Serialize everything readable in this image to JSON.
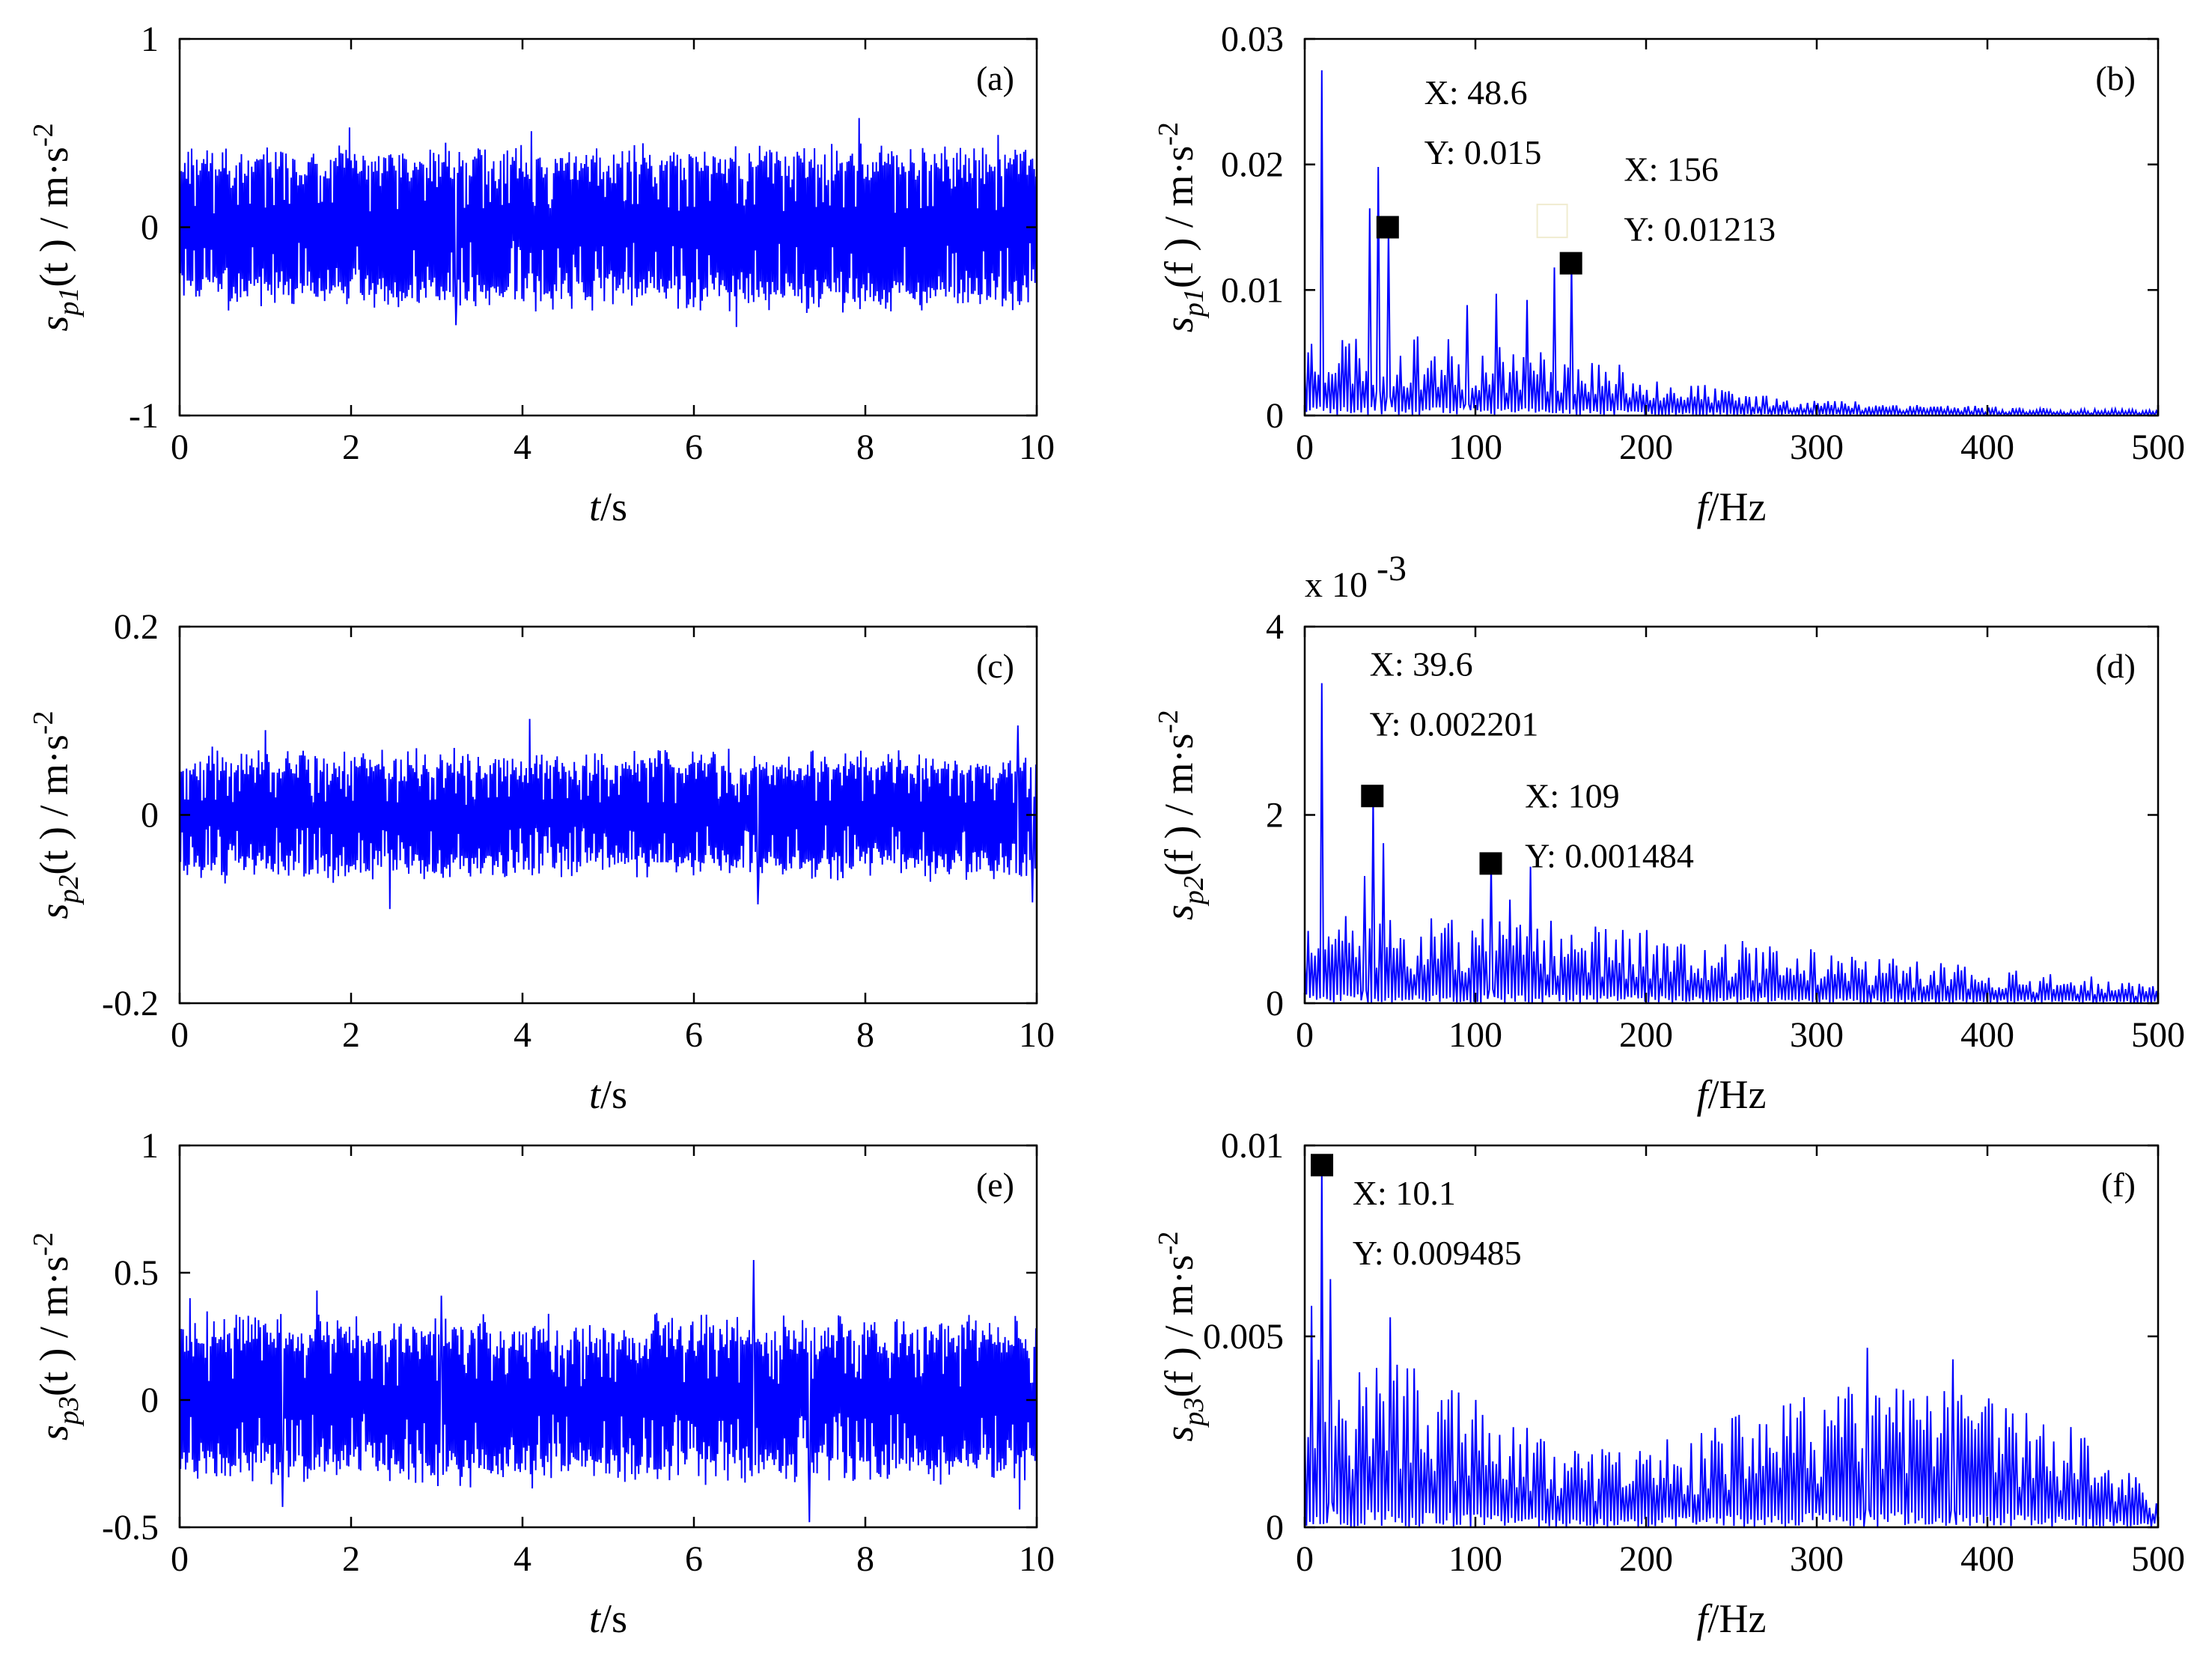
{
  "chart_data": [
    {
      "type": "line",
      "id": "a",
      "panel_label": "(a)",
      "color": "#0000ff",
      "xlabel_main": "t",
      "xlabel_unit": "/s",
      "ylabel_var": "s",
      "ylabel_sub": "p1",
      "ylabel_arg": "(t )",
      "ylabel_unit": " / m·s",
      "ylabel_sup": "-2",
      "xlim": [
        0,
        10
      ],
      "ylim": [
        -1,
        1
      ],
      "xticks": [
        0,
        2,
        4,
        6,
        8,
        10
      ],
      "xtick_labels": [
        "0",
        "2",
        "4",
        "6",
        "8",
        "10"
      ],
      "yticks": [
        -1,
        0,
        1
      ],
      "ytick_labels": [
        "-1",
        "0",
        "1"
      ],
      "signal": {
        "kind": "time",
        "n": 1000,
        "amp": 0.33,
        "spread": 0.07,
        "noise": 0.06,
        "seed": 11,
        "spikes": [
          [
            1.98,
            0.53
          ],
          [
            4.1,
            0.51
          ],
          [
            7.93,
            0.58
          ],
          [
            9.55,
            0.49
          ],
          [
            3.22,
            -0.52
          ],
          [
            6.5,
            -0.53
          ]
        ]
      },
      "markers": [],
      "annotations": []
    },
    {
      "type": "line",
      "id": "b",
      "panel_label": "(b)",
      "color": "#0000ff",
      "xlabel_main": "f",
      "xlabel_unit": "/Hz",
      "ylabel_var": "s",
      "ylabel_sub": "p1",
      "ylabel_arg": "(f )",
      "ylabel_unit": " / m·s",
      "ylabel_sup": "-2",
      "xlim": [
        0,
        500
      ],
      "ylim": [
        0,
        0.03
      ],
      "xticks": [
        0,
        100,
        200,
        300,
        400,
        500
      ],
      "xtick_labels": [
        "0",
        "100",
        "200",
        "300",
        "400",
        "500"
      ],
      "yticks": [
        0,
        0.01,
        0.02,
        0.03
      ],
      "ytick_labels": [
        "0",
        "0.01",
        "0.02",
        "0.03"
      ],
      "signal": {
        "kind": "spec",
        "n": 500,
        "seed": 23,
        "envelope": [
          [
            0,
            0.0065
          ],
          [
            60,
            0.0058
          ],
          [
            150,
            0.0048
          ],
          [
            200,
            0.0032
          ],
          [
            250,
            0.0018
          ],
          [
            300,
            0.0012
          ],
          [
            400,
            0.0007
          ],
          [
            500,
            0.0004
          ]
        ],
        "spikes": [
          [
            10,
            0.0275
          ],
          [
            43,
            0.0198
          ],
          [
            48.6,
            0.015
          ],
          [
            38,
            0.0165
          ],
          [
            156,
            0.01213
          ],
          [
            146,
            0.0118
          ],
          [
            112,
            0.0097
          ],
          [
            130,
            0.0092
          ],
          [
            95,
            0.0088
          ]
        ]
      },
      "markers": [
        {
          "x": 48.6,
          "y": 0.015
        },
        {
          "x": 156,
          "y": 0.01213
        }
      ],
      "hollow_marker": {
        "x": 145,
        "y": 0.0155
      },
      "annotations": [
        {
          "x_text": "X: 48.6",
          "y_text": "Y: 0.015",
          "ax": 70,
          "ay": 0.0248
        },
        {
          "x_text": "X: 156",
          "y_text": "Y: 0.01213",
          "ax": 187,
          "ay": 0.0187
        }
      ]
    },
    {
      "type": "line",
      "id": "c",
      "panel_label": "(c)",
      "color": "#0000ff",
      "xlabel_main": "t",
      "xlabel_unit": "/s",
      "ylabel_var": "s",
      "ylabel_sub": "p2",
      "ylabel_arg": "(t )",
      "ylabel_unit": " / m·s",
      "ylabel_sup": "-2",
      "xlim": [
        0,
        10
      ],
      "ylim": [
        -0.2,
        0.2
      ],
      "xticks": [
        0,
        2,
        4,
        6,
        8,
        10
      ],
      "xtick_labels": [
        "0",
        "2",
        "4",
        "6",
        "8",
        "10"
      ],
      "yticks": [
        -0.2,
        0,
        0.2
      ],
      "ytick_labels": [
        "-0.2",
        "0",
        "0.2"
      ],
      "signal": {
        "kind": "time",
        "n": 1000,
        "amp": 0.05,
        "spread": 0.012,
        "noise": 0.012,
        "seed": 37,
        "spikes": [
          [
            4.08,
            0.102
          ],
          [
            9.78,
            0.095
          ],
          [
            2.45,
            -0.1
          ],
          [
            6.75,
            -0.095
          ],
          [
            9.95,
            -0.093
          ],
          [
            1.0,
            0.09
          ]
        ]
      },
      "markers": [],
      "annotations": []
    },
    {
      "type": "line",
      "id": "d",
      "panel_label": "(d)",
      "color": "#0000ff",
      "xlabel_main": "f",
      "xlabel_unit": "/Hz",
      "ylabel_var": "s",
      "ylabel_sub": "p2",
      "ylabel_arg": "(f )",
      "ylabel_unit": " / m·s",
      "ylabel_sup": "-2",
      "exponent_label": "x 10",
      "exponent_power": "-3",
      "xlim": [
        0,
        500
      ],
      "ylim": [
        0,
        4
      ],
      "xticks": [
        0,
        100,
        200,
        300,
        400,
        500
      ],
      "xtick_labels": [
        "0",
        "100",
        "200",
        "300",
        "400",
        "500"
      ],
      "yticks": [
        0,
        2,
        4
      ],
      "ytick_labels": [
        "0",
        "2",
        "4"
      ],
      "signal": {
        "kind": "spec",
        "n": 500,
        "seed": 51,
        "envelope": [
          [
            0,
            0.85
          ],
          [
            150,
            0.8
          ],
          [
            250,
            0.62
          ],
          [
            350,
            0.42
          ],
          [
            450,
            0.28
          ],
          [
            500,
            0.18
          ]
        ],
        "spikes": [
          [
            10,
            3.4
          ],
          [
            39.6,
            2.201
          ],
          [
            46,
            1.7
          ],
          [
            109,
            1.484
          ],
          [
            132,
            1.45
          ],
          [
            35,
            1.35
          ],
          [
            120,
            1.1
          ]
        ]
      },
      "markers": [
        {
          "x": 39.6,
          "y": 2.201
        },
        {
          "x": 109,
          "y": 1.484
        }
      ],
      "annotations": [
        {
          "x_text": "X: 39.6",
          "y_text": "Y: 0.002201",
          "ax": 38,
          "ay": 3.48
        },
        {
          "x_text": "X: 109",
          "y_text": "Y: 0.001484",
          "ax": 129,
          "ay": 2.08
        }
      ]
    },
    {
      "type": "line",
      "id": "e",
      "panel_label": "(e)",
      "color": "#0000ff",
      "xlabel_main": "t",
      "xlabel_unit": "/s",
      "ylabel_var": "s",
      "ylabel_sub": "p3",
      "ylabel_arg": "(t )",
      "ylabel_unit": " / m·s",
      "ylabel_sup": "-2",
      "xlim": [
        0,
        10
      ],
      "ylim": [
        -0.5,
        1
      ],
      "xticks": [
        0,
        2,
        4,
        6,
        8,
        10
      ],
      "xtick_labels": [
        "0",
        "2",
        "4",
        "6",
        "8",
        "10"
      ],
      "yticks": [
        -0.5,
        0,
        0.5,
        1
      ],
      "ytick_labels": [
        "-0.5",
        "0",
        "0.5",
        "1"
      ],
      "signal": {
        "kind": "time",
        "n": 1000,
        "amp": 0.24,
        "spread": 0.06,
        "noise": 0.05,
        "seed": 73,
        "spikes": [
          [
            6.7,
            0.55
          ],
          [
            1.6,
            0.43
          ],
          [
            0.12,
            0.4
          ],
          [
            3.05,
            0.41
          ],
          [
            7.35,
            -0.48
          ],
          [
            1.2,
            -0.42
          ],
          [
            9.8,
            -0.43
          ]
        ]
      },
      "markers": [],
      "annotations": []
    },
    {
      "type": "line",
      "id": "f",
      "panel_label": "(f)",
      "color": "#0000ff",
      "xlabel_main": "f",
      "xlabel_unit": "/Hz",
      "ylabel_var": "s",
      "ylabel_sub": "p3",
      "ylabel_arg": "(f )",
      "ylabel_unit": " / m·s",
      "ylabel_sup": "-2",
      "xlim": [
        0,
        500
      ],
      "ylim": [
        0,
        0.01
      ],
      "xticks": [
        0,
        100,
        200,
        300,
        400,
        500
      ],
      "xtick_labels": [
        "0",
        "100",
        "200",
        "300",
        "400",
        "500"
      ],
      "yticks": [
        0,
        0.005,
        0.01
      ],
      "ytick_labels": [
        "0",
        "0.005",
        "0.01"
      ],
      "signal": {
        "kind": "spec",
        "n": 500,
        "seed": 97,
        "envelope": [
          [
            0,
            0.0045
          ],
          [
            60,
            0.004
          ],
          [
            110,
            0.0028
          ],
          [
            160,
            0.0018
          ],
          [
            200,
            0.002
          ],
          [
            260,
            0.0028
          ],
          [
            330,
            0.0035
          ],
          [
            400,
            0.0032
          ],
          [
            460,
            0.0022
          ],
          [
            500,
            0.0008
          ]
        ],
        "spikes": [
          [
            10.1,
            0.009485
          ],
          [
            15,
            0.0065
          ],
          [
            4,
            0.0058
          ],
          [
            330,
            0.0047
          ],
          [
            380,
            0.0044
          ],
          [
            50,
            0.0055
          ]
        ]
      },
      "markers": [
        {
          "x": 10.1,
          "y": 0.009485
        }
      ],
      "annotations": [
        {
          "x_text": "X: 10.1",
          "y_text": "Y: 0.009485",
          "ax": 28,
          "ay": 0.00845
        }
      ]
    }
  ]
}
